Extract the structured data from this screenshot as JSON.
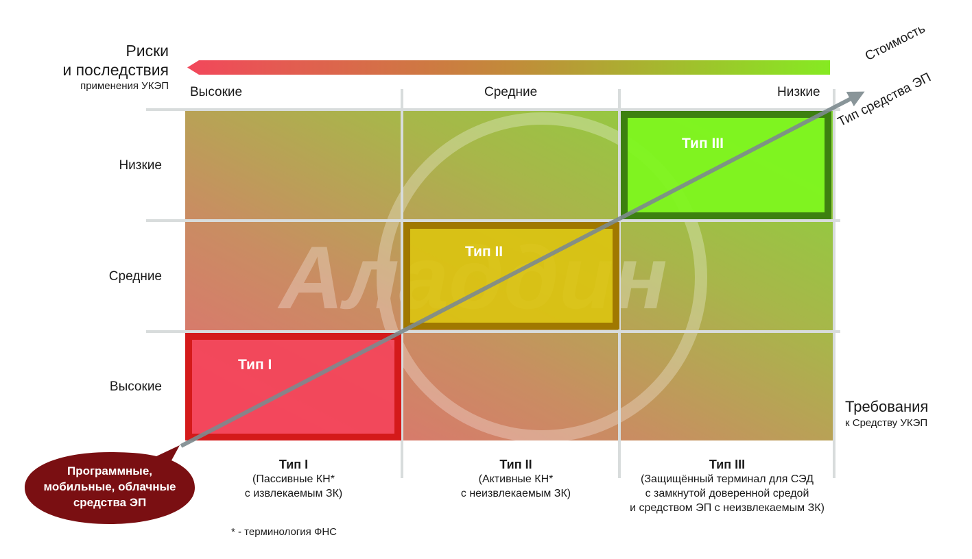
{
  "risk_axis": {
    "title_line1": "Риски",
    "title_line2": "и последствия",
    "title_line3": "применения УКЭП",
    "columns": [
      "Высокие",
      "Средние",
      "Низкие"
    ],
    "gradient_colors": [
      "#f2475b",
      "#8fe320"
    ]
  },
  "requirements_axis": {
    "rows": [
      "Низкие",
      "Средние",
      "Высокие"
    ],
    "title_line1": "Требования",
    "title_line2": "к Средству УКЭП"
  },
  "arrow_labels": {
    "cost": "Стоимость",
    "esign_type": "Тип средства ЭП"
  },
  "types": [
    {
      "label": "Тип I",
      "border_color": "#d41a1a",
      "fill_color": "#f5435a"
    },
    {
      "label": "Тип II",
      "border_color": "#a07800",
      "fill_color": "#dcc410"
    },
    {
      "label": "Тип III",
      "border_color": "#3d8010",
      "fill_color": "#7ef51f"
    }
  ],
  "watermark": "Аладдин",
  "bottom_columns": [
    {
      "title": "Тип I",
      "line1": "(Пассивные КН*",
      "line2": "с извлекаемым ЗК)",
      "line3": ""
    },
    {
      "title": "Тип II",
      "line1": "(Активные КН*",
      "line2": "с неизвлекаемым ЗК)",
      "line3": ""
    },
    {
      "title": "Тип III",
      "line1": "(Защищённый терминал для СЭД",
      "line2": "с замкнутой доверенной средой",
      "line3": "и средством ЭП с неизвлекаемым ЗК)"
    }
  ],
  "bubble": {
    "line1": "Программные,",
    "line2": "мобильные, облачные",
    "line3": "средства ЭП",
    "color": "#7a0f12"
  },
  "footnote": "* - терминология ФНС"
}
